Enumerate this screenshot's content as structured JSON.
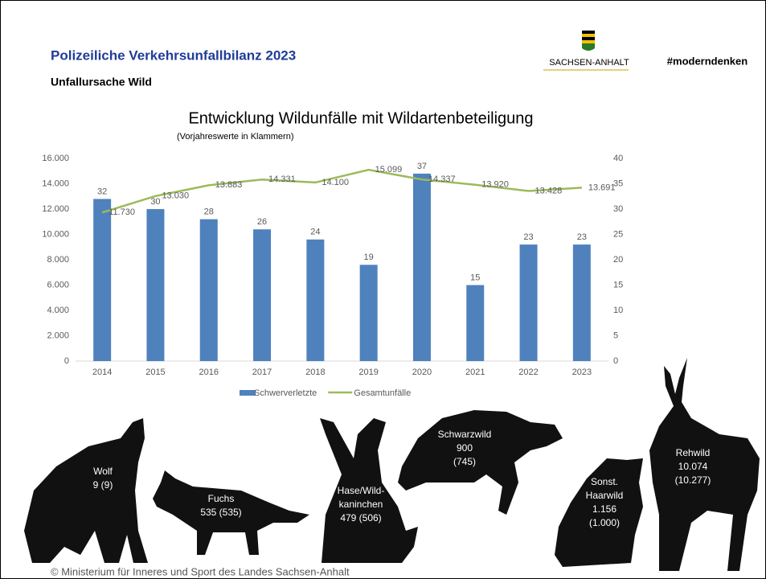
{
  "header": {
    "title": "Polizeiliche Verkehrsunfallbilanz 2023",
    "subtitle": "Unfallursache Wild",
    "logo_text": "SACHSEN-ANHALT",
    "hashtag": "#moderndenken"
  },
  "chart_data": {
    "type": "combo",
    "title": "Entwicklung Wildunfälle mit Wildartenbeteiligung",
    "subtitle": "(Vorjahreswerte in Klammern)",
    "categories": [
      "2014",
      "2015",
      "2016",
      "2017",
      "2018",
      "2019",
      "2020",
      "2021",
      "2022",
      "2023"
    ],
    "series": [
      {
        "name": "Schwerverletzte",
        "type": "bar",
        "axis": "y2",
        "color": "#4f81bd",
        "values": [
          32,
          30,
          28,
          26,
          24,
          19,
          37,
          15,
          23,
          23
        ]
      },
      {
        "name": "Gesamtunfälle",
        "type": "line",
        "color": "#9bbb59",
        "values": [
          11730,
          13030,
          13883,
          14331,
          14100,
          15099,
          14337,
          13920,
          13428,
          13691
        ],
        "value_labels": [
          "11.730",
          "13.030",
          "13.883",
          "14.331",
          "14.100",
          "15.099",
          "14.337",
          "13.920",
          "13.428",
          "13.691"
        ]
      }
    ],
    "ylim": [
      0,
      16000
    ],
    "yticks": [
      0,
      {
        "value": 2000,
        "label": "2.000"
      },
      {
        "value": 4000,
        "label": "4.000"
      },
      {
        "value": 6000,
        "label": "6.000"
      },
      {
        "value": 8000,
        "label": "8.000"
      },
      {
        "value": 10000,
        "label": "10.000"
      },
      {
        "value": 12000,
        "label": "12.000"
      },
      {
        "value": 14000,
        "label": "14.000"
      },
      {
        "value": 16000,
        "label": "16.000"
      }
    ],
    "y2lim": [
      0,
      40
    ],
    "y2ticks": [
      0,
      5,
      10,
      15,
      20,
      25,
      30,
      35,
      40
    ],
    "legend": "bottom"
  },
  "animals": [
    {
      "lines": [
        "Wolf",
        "9 (9)"
      ]
    },
    {
      "lines": [
        "Fuchs",
        "535 (535)"
      ]
    },
    {
      "lines": [
        "Hase/Wild-",
        "kaninchen",
        "479 (506)"
      ]
    },
    {
      "lines": [
        "Schwarzwild",
        "900",
        "(745)"
      ]
    },
    {
      "lines": [
        "Sonst.",
        "Haarwild",
        "1.156",
        "(1.000)"
      ]
    },
    {
      "lines": [
        "Rehwild",
        "10.074",
        "(10.277)"
      ]
    }
  ],
  "footer": "© Ministerium für Inneres und Sport des Landes Sachsen-Anhalt"
}
